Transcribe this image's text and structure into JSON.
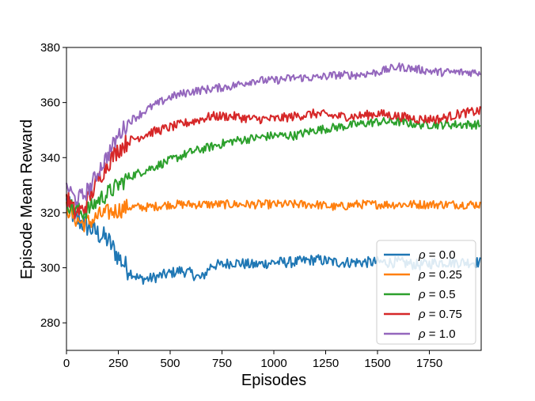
{
  "chart_data": {
    "type": "line",
    "xlabel": "Episodes",
    "ylabel": "Episode Mean Reward",
    "xlim": [
      0,
      2000
    ],
    "ylim": [
      270,
      380
    ],
    "xticks": [
      0,
      250,
      500,
      750,
      1000,
      1250,
      1500,
      1750
    ],
    "yticks": [
      280,
      300,
      320,
      340,
      360,
      380
    ],
    "grid": false,
    "legend_position": "lower-right",
    "series": [
      {
        "name": "ρ = 0.0",
        "label_symbol": "ρ",
        "label_value": "= 0.0",
        "color": "#1f77b4",
        "x": [
          0,
          40,
          80,
          120,
          160,
          200,
          250,
          300,
          350,
          400,
          450,
          500,
          550,
          600,
          650,
          700,
          750,
          800,
          900,
          1000,
          1100,
          1200,
          1300,
          1400,
          1500,
          1600,
          1700,
          1800,
          1900,
          2000
        ],
        "y": [
          324,
          318,
          316,
          314,
          312,
          310,
          304,
          299,
          296,
          296,
          297,
          298,
          299,
          298,
          296,
          301,
          301,
          302,
          301,
          302,
          302,
          303,
          302,
          302,
          302,
          302,
          301,
          302,
          302,
          302
        ],
        "noise": 2.0
      },
      {
        "name": "ρ = 0.25",
        "label_symbol": "ρ",
        "label_value": "= 0.25",
        "color": "#ff7f0e",
        "x": [
          0,
          40,
          80,
          120,
          160,
          200,
          250,
          300,
          400,
          500,
          600,
          700,
          800,
          900,
          1000,
          1100,
          1200,
          1300,
          1400,
          1500,
          1600,
          1700,
          1800,
          1900,
          2000
        ],
        "y": [
          322,
          318,
          316,
          317,
          319,
          320,
          321,
          322,
          322,
          323,
          323,
          323,
          323,
          323,
          323,
          323,
          323,
          322,
          323,
          323,
          323,
          323,
          323,
          323,
          323
        ],
        "noise": 1.6
      },
      {
        "name": "ρ = 0.5",
        "label_symbol": "ρ",
        "label_value": "= 0.5",
        "color": "#2ca02c",
        "x": [
          0,
          40,
          80,
          120,
          160,
          200,
          250,
          300,
          400,
          500,
          600,
          700,
          800,
          900,
          1000,
          1100,
          1200,
          1300,
          1400,
          1500,
          1600,
          1700,
          1800,
          1900,
          2000
        ],
        "y": [
          324,
          321,
          320,
          322,
          325,
          327,
          330,
          333,
          336,
          339,
          342,
          344,
          346,
          347,
          348,
          348,
          350,
          351,
          352,
          353,
          353,
          352,
          352,
          352,
          352
        ],
        "noise": 1.6
      },
      {
        "name": "ρ = 0.75",
        "label_symbol": "ρ",
        "label_value": "= 0.75",
        "color": "#d62728",
        "x": [
          0,
          40,
          80,
          120,
          160,
          200,
          250,
          300,
          400,
          500,
          600,
          700,
          800,
          900,
          1000,
          1100,
          1200,
          1300,
          1400,
          1500,
          1600,
          1700,
          1800,
          1900,
          2000
        ],
        "y": [
          326,
          320,
          321,
          327,
          333,
          338,
          343,
          346,
          349,
          351,
          353,
          355,
          355,
          354,
          354,
          355,
          356,
          355,
          355,
          356,
          355,
          354,
          354,
          356,
          357
        ],
        "noise": 1.7
      },
      {
        "name": "ρ = 1.0",
        "label_symbol": "ρ",
        "label_value": "= 1.0",
        "color": "#9467bd",
        "x": [
          0,
          40,
          80,
          120,
          160,
          200,
          250,
          300,
          400,
          500,
          600,
          700,
          800,
          900,
          1000,
          1100,
          1200,
          1300,
          1400,
          1500,
          1600,
          1700,
          1800,
          1900,
          2000
        ],
        "y": [
          330,
          325,
          326,
          330,
          336,
          341,
          348,
          353,
          358,
          362,
          364,
          365,
          366,
          368,
          368,
          369,
          369,
          370,
          370,
          371,
          373,
          372,
          371,
          371,
          371
        ],
        "noise": 1.5
      }
    ]
  }
}
